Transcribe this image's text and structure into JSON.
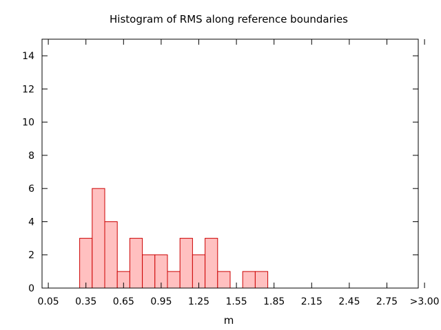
{
  "chart_data": {
    "type": "bar",
    "title": "Histogram of RMS along reference boundaries",
    "xlabel": "m",
    "ylabel": "",
    "bin_width": 0.1,
    "bin_starts": [
      0.3,
      0.4,
      0.5,
      0.6,
      0.7,
      0.8,
      0.9,
      1.0,
      1.1,
      1.2,
      1.3,
      1.4,
      1.5,
      1.6,
      1.7
    ],
    "values": [
      3,
      6,
      4,
      1,
      3,
      2,
      2,
      1,
      3,
      2,
      3,
      1,
      0,
      1,
      1
    ],
    "xlim": [
      0.0,
      3.0
    ],
    "ylim": [
      0,
      15
    ],
    "x_ticks": [
      0.05,
      0.35,
      0.65,
      0.95,
      1.25,
      1.55,
      1.85,
      2.15,
      2.45,
      2.75,
      3.05
    ],
    "x_tick_labels": [
      "0.05",
      "0.35",
      "0.65",
      "0.95",
      "1.25",
      "1.55",
      "1.85",
      "2.15",
      "2.45",
      "2.75",
      ">3.00"
    ],
    "y_ticks": [
      0,
      2,
      4,
      6,
      8,
      10,
      12,
      14
    ],
    "y_tick_labels": [
      "0",
      "2",
      "4",
      "6",
      "8",
      "10",
      "12",
      "14"
    ],
    "colors": {
      "bar_fill": "#ffc0c0",
      "bar_stroke": "#cc0000"
    },
    "grid": false,
    "legend": "none"
  }
}
